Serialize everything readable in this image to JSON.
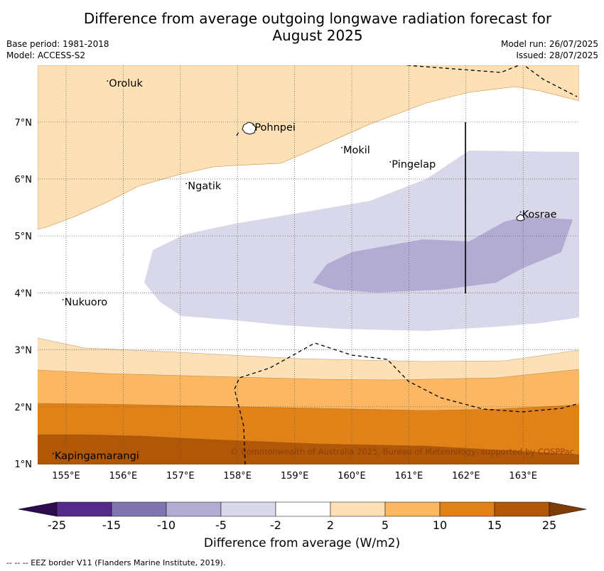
{
  "title_line1": "Difference from average outgoing longwave radiation forecast for",
  "title_line2": "August 2025",
  "meta": {
    "base_period": "Base period: 1981-2018",
    "model": "Model: ACCESS-S2",
    "model_run": "Model run: 26/07/2025",
    "issued": "Issued: 28/07/2025"
  },
  "copyright": "© Commonwealth of Australia 2025, Bureau of Meteorology, supported by COSPPac",
  "lat_labels": [
    "1°N",
    "2°N",
    "3°N",
    "4°N",
    "5°N",
    "6°N",
    "7°N"
  ],
  "lon_labels": [
    "155°E",
    "156°E",
    "157°E",
    "158°E",
    "159°E",
    "160°E",
    "161°E",
    "162°E",
    "163°E"
  ],
  "places": [
    {
      "name": "Oroluk",
      "lon": 155.75,
      "lat": 7.62
    },
    {
      "name": "Pohnpei",
      "lon": 158.3,
      "lat": 6.85
    },
    {
      "name": "Mokil",
      "lon": 159.85,
      "lat": 6.45
    },
    {
      "name": "Pingelap",
      "lon": 160.7,
      "lat": 6.2
    },
    {
      "name": "Ngatik",
      "lon": 157.13,
      "lat": 5.82
    },
    {
      "name": "Kosrae",
      "lon": 162.98,
      "lat": 5.32
    },
    {
      "name": "Nukuoro",
      "lon": 154.97,
      "lat": 3.78
    },
    {
      "name": "Kapingamarangi",
      "lon": 154.8,
      "lat": 1.08
    }
  ],
  "colorbar": {
    "labels": [
      "-25",
      "-15",
      "-10",
      "-5",
      "-2",
      "2",
      "5",
      "10",
      "15",
      "25"
    ],
    "colors": [
      "#552a8a",
      "#8075b0",
      "#b2abd2",
      "#d8d8ea",
      "#ffffff",
      "#fde0b6",
      "#fbb762",
      "#e08217",
      "#b05708"
    ],
    "under_color": "#2d0c4e",
    "over_color": "#7f3b08",
    "title": "Difference from average (W/m2)"
  },
  "footnote": "--  --  -- EEZ border V11 (Flanders Marine Institute, 2019)."
}
